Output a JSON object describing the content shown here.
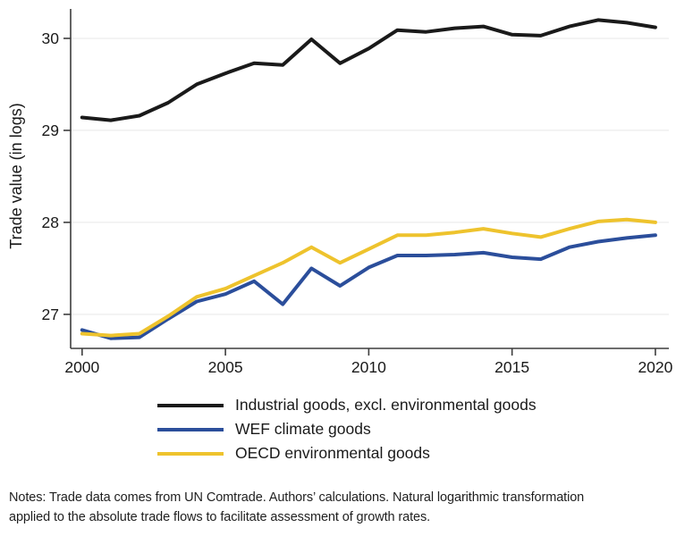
{
  "figure": {
    "notes": {
      "line1": "Notes: Trade data comes from UN Comtrade. Authors’ calculations. Natural logarithmic transformation",
      "line2": "applied to the absolute trade flows to facilitate assessment of growth rates."
    }
  },
  "chart_data": {
    "type": "line",
    "title": "",
    "xlabel": "",
    "ylabel": "Trade value (in logs)",
    "x": [
      2000,
      2001,
      2002,
      2003,
      2004,
      2005,
      2006,
      2007,
      2008,
      2009,
      2010,
      2011,
      2012,
      2013,
      2014,
      2015,
      2016,
      2017,
      2018,
      2019,
      2020
    ],
    "series": [
      {
        "name": "Industrial goods, excl. environmental goods",
        "color": "#1a1a1a",
        "values": [
          29.14,
          29.11,
          29.16,
          29.3,
          29.5,
          29.62,
          29.73,
          29.71,
          29.99,
          29.73,
          29.89,
          30.09,
          30.07,
          30.11,
          30.13,
          30.04,
          30.03,
          30.13,
          30.2,
          30.17,
          30.12
        ]
      },
      {
        "name": "WEF climate goods",
        "color": "#2b4e9b",
        "values": [
          26.83,
          26.74,
          26.75,
          26.95,
          27.14,
          27.22,
          27.36,
          27.11,
          27.5,
          27.31,
          27.51,
          27.64,
          27.64,
          27.65,
          27.67,
          27.62,
          27.6,
          27.73,
          27.79,
          27.83,
          27.86
        ]
      },
      {
        "name": "OECD environmental goods",
        "color": "#eec32d",
        "values": [
          26.79,
          26.77,
          26.79,
          26.98,
          27.19,
          27.28,
          27.42,
          27.56,
          27.73,
          27.56,
          27.71,
          27.86,
          27.86,
          27.89,
          27.93,
          27.88,
          27.84,
          27.93,
          28.01,
          28.03,
          28.0
        ]
      }
    ],
    "xlim": [
      1999.6,
      2020.47
    ],
    "ylim": [
      26.63,
      30.32
    ],
    "xticks": [
      2000,
      2005,
      2010,
      2015,
      2020
    ],
    "yticks": [
      27,
      28,
      29,
      30
    ],
    "grid": true,
    "legend_position": "bottom",
    "styles": {
      "grid_color": "#efefef",
      "axis_color": "#3d3d3d",
      "tick_label_color": "#1a1a1a",
      "line_width": 4
    }
  }
}
